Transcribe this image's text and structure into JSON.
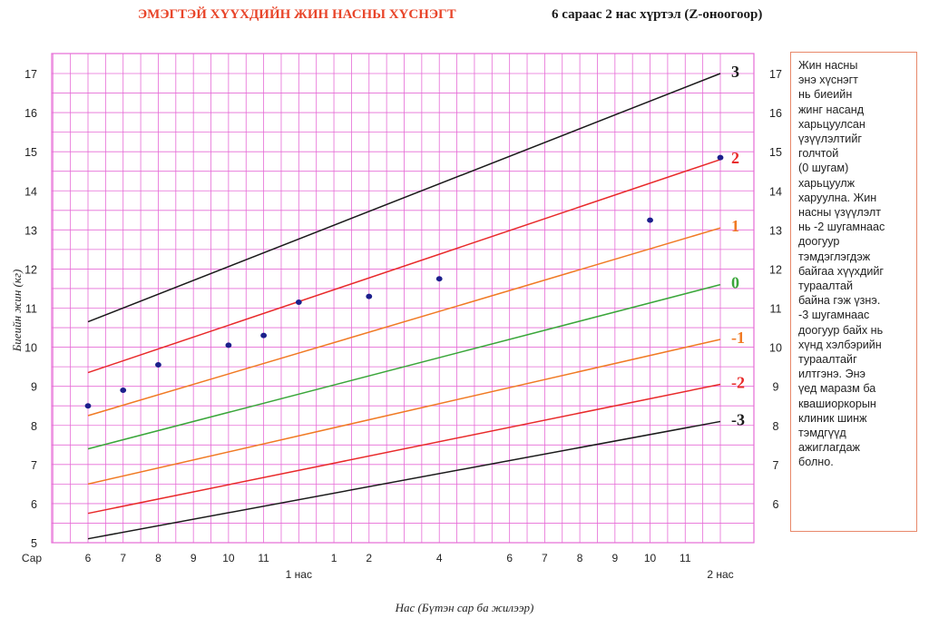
{
  "header": {
    "title": "ЭМЭГТЭЙ ХҮҮХДИЙН ЖИН НАСНЫ ХҮСНЭГТ",
    "subtitle": "6 сараас 2 нас хүртэл (Z-оноогоор)"
  },
  "note": {
    "text": "Жин насны\nэнэ хүснэгт\nнь биеийн\nжинг насанд\nхарьцуулсан\nүзүүлэлтийг\nголчтой\n(0 шугам)\nхарьцуулж\nхаруулна. Жин\nнасны үзүүлэлт\nнь -2 шугамнаас\nдоогуур\nтэмдэглэгдэж\nбайгаа хүүхдийг\nтураалтай\nбайна гэж үзнэ.\n-3 шугамнаас\nдоогуур байх нь\nхүнд хэлбэрийн\nтураалтайг\nилтгэнэ. Энэ\nүед маразм ба\nквашиоркорын\nклиник шинж\nтэмдгүүд\nажиглагдаж\nболно."
  },
  "colors": {
    "grid": "#e66bd6",
    "sd3": "#1a1a1a",
    "sd2": "#e82a2a",
    "sd1": "#f07a24",
    "sd0": "#3aa63a",
    "points": "#1c1f8c"
  },
  "chart_data": {
    "type": "line",
    "title": "ЭМЭГТЭЙ ХҮҮХДИЙН ЖИН НАСНЫ ХҮСНЭГТ",
    "xlabel": "Нас (Бүтэн сар ба жилээр)",
    "ylabel": "Биеийн жин (кг)",
    "x_unit_label": "Сар",
    "xlim": [
      6,
      24
    ],
    "ylim": [
      5,
      17
    ],
    "y_ticks": [
      5,
      6,
      7,
      8,
      9,
      10,
      11,
      12,
      13,
      14,
      15,
      16,
      17
    ],
    "y_ticks_right": [
      6,
      7,
      8,
      9,
      10,
      11,
      12,
      13,
      14,
      15,
      16,
      17
    ],
    "x_tick_labels": [
      "6",
      "7",
      "8",
      "9",
      "10",
      "11",
      "1",
      "2",
      "4",
      "6",
      "7",
      "8",
      "9",
      "10",
      "11"
    ],
    "x_year_labels": [
      "1 нас",
      "2 нас"
    ],
    "grid": true,
    "series": [
      {
        "name": "3",
        "key": "sd3",
        "x": [
          6,
          24
        ],
        "y": [
          10.65,
          17.0
        ]
      },
      {
        "name": "2",
        "key": "sd2",
        "x": [
          6,
          24
        ],
        "y": [
          9.35,
          14.8
        ]
      },
      {
        "name": "1",
        "key": "sd1",
        "x": [
          6,
          24
        ],
        "y": [
          8.25,
          13.05
        ]
      },
      {
        "name": "0",
        "key": "sd0",
        "x": [
          6,
          24
        ],
        "y": [
          7.4,
          11.6
        ]
      },
      {
        "name": "-1",
        "key": "sd1",
        "x": [
          6,
          24
        ],
        "y": [
          6.5,
          10.2
        ]
      },
      {
        "name": "-2",
        "key": "sd2",
        "x": [
          6,
          24
        ],
        "y": [
          5.75,
          9.05
        ]
      },
      {
        "name": "-3",
        "key": "sd3",
        "x": [
          6,
          24
        ],
        "y": [
          5.1,
          8.1
        ]
      }
    ],
    "points": {
      "x": [
        6,
        7,
        8,
        10,
        11,
        12,
        14,
        16,
        22,
        24
      ],
      "y": [
        8.5,
        8.9,
        9.55,
        10.05,
        10.3,
        11.15,
        11.3,
        11.75,
        13.25,
        14.85
      ]
    }
  }
}
